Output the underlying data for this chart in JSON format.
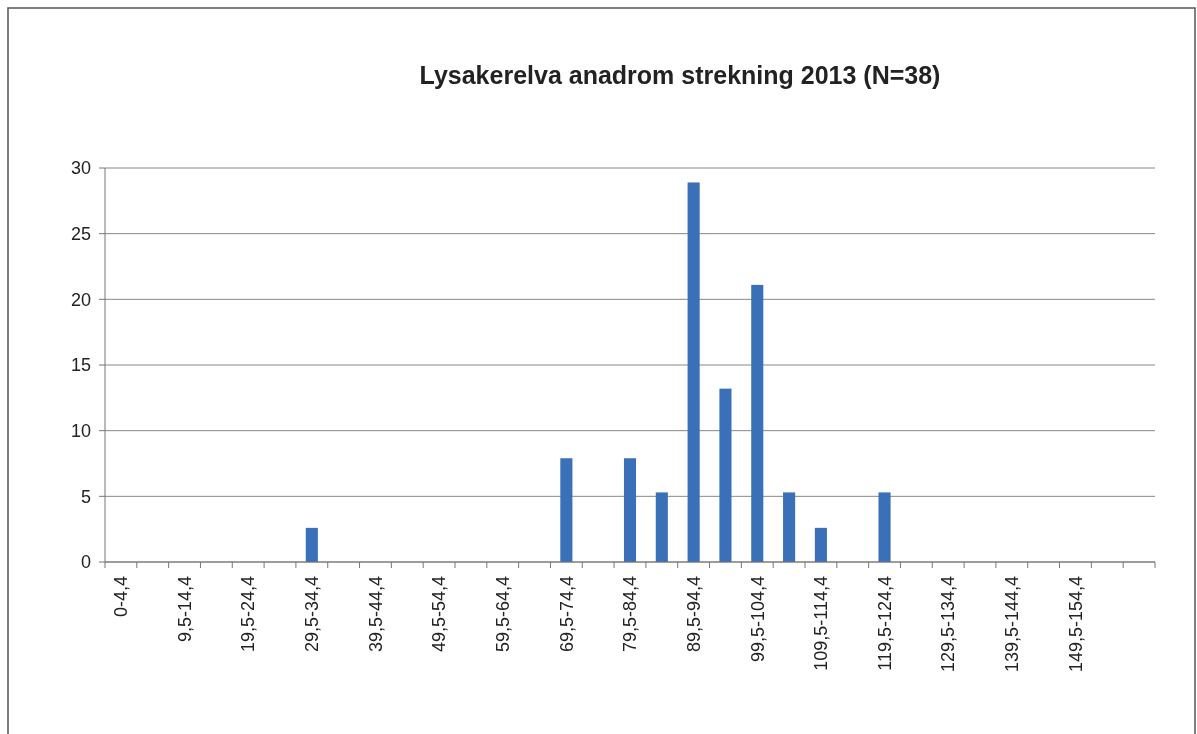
{
  "chart_data": {
    "type": "bar",
    "title": "Lysakerelva anadrom strekning 2013 (N=38)",
    "categories": [
      "0-4,4",
      null,
      "9,5-14,4",
      null,
      "19,5-24,4",
      null,
      "29,5-34,4",
      null,
      "39,5-44,4",
      null,
      "49,5-54,4",
      null,
      "59,5-64,4",
      null,
      "69,5-74,4",
      null,
      "79,5-84,4",
      null,
      "89,5-94,4",
      null,
      "99,5-104,4",
      null,
      "109,5-114,4",
      null,
      "119,5-124,4",
      null,
      "129,5-134,4",
      null,
      "139,5-144,4",
      null,
      "149,5-154,4",
      null,
      null
    ],
    "values": [
      0,
      0,
      0,
      0,
      0,
      0,
      2.6,
      0,
      0,
      0,
      0,
      0,
      0,
      0,
      7.9,
      0,
      7.9,
      5.3,
      28.9,
      13.2,
      21.1,
      5.3,
      2.6,
      0,
      5.3,
      0,
      0,
      0,
      0,
      0,
      0,
      0,
      0
    ],
    "color": "#3a70b8",
    "ylim": [
      0,
      30
    ],
    "yticks": [
      0,
      5,
      10,
      15,
      20,
      25,
      30
    ],
    "grid": "y"
  }
}
